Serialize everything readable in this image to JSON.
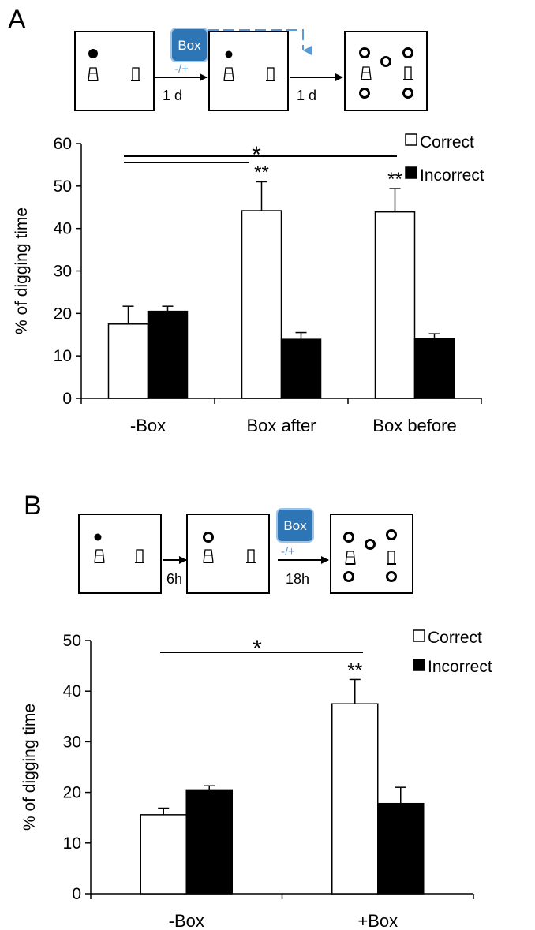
{
  "colors": {
    "correct_fill": "#ffffff",
    "incorrect_fill": "#000000",
    "box_fill": "#2e75b6",
    "box_stroke": "#9dc3e6",
    "accent_blue": "#5b9bd5"
  },
  "panel_a": {
    "label": "A",
    "schematic": {
      "box_label": "Box",
      "box_sublabel": "-/+",
      "arrow1_label": "1 d",
      "arrow2_label": "1 d"
    }
  },
  "panel_b": {
    "label": "B",
    "schematic": {
      "box_label": "Box",
      "box_sublabel": "-/+",
      "arrow1_label": "6h",
      "arrow2_label": "18h"
    }
  },
  "chart_data": [
    {
      "type": "bar",
      "categories": [
        "-Box",
        "Box after",
        "Box before"
      ],
      "series": [
        {
          "name": "Correct",
          "values": [
            17.5,
            44.2,
            43.9
          ],
          "errors": [
            4.2,
            6.8,
            5.5
          ]
        },
        {
          "name": "Incorrect",
          "values": [
            20.5,
            13.9,
            14.1
          ],
          "errors": [
            1.2,
            1.6,
            1.1
          ]
        }
      ],
      "ylabel": "% of digging time",
      "ylim": [
        0,
        60
      ],
      "yticks": [
        0,
        10,
        20,
        30,
        40,
        50,
        60
      ],
      "legend": "top-right",
      "annotations": {
        "sig_star": "*",
        "sig_double": "**"
      }
    },
    {
      "type": "bar",
      "categories": [
        "-Box",
        "+Box"
      ],
      "series": [
        {
          "name": "Correct",
          "values": [
            15.6,
            37.5
          ],
          "errors": [
            1.3,
            4.8
          ]
        },
        {
          "name": "Incorrect",
          "values": [
            20.5,
            17.8
          ],
          "errors": [
            0.8,
            3.2
          ]
        }
      ],
      "ylabel": "% of digging time",
      "ylim": [
        0,
        50
      ],
      "yticks": [
        0,
        10,
        20,
        30,
        40,
        50
      ],
      "legend": "top-right",
      "annotations": {
        "sig_star": "*",
        "sig_double": "**"
      }
    }
  ]
}
